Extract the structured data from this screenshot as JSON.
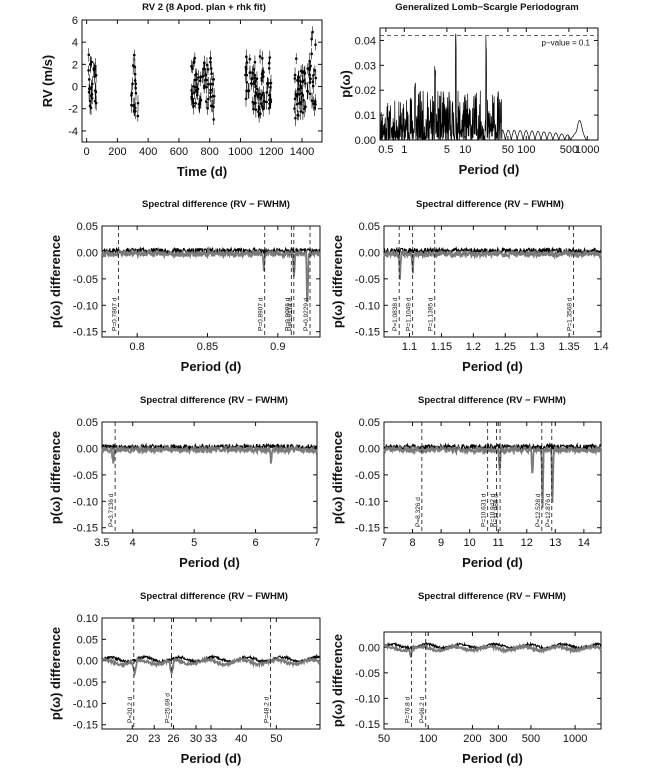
{
  "chart_data": [
    {
      "type": "scatter",
      "title": "RV 2  (8 Apod. plan + rhk fit)",
      "xlabel": "Time (d)",
      "ylabel": "RV (m/s)",
      "xlim": [
        -30,
        1530
      ],
      "ylim": [
        -5,
        6
      ],
      "xticks": [
        0,
        200,
        400,
        600,
        800,
        1000,
        1200,
        1400
      ],
      "yticks": [
        -4,
        -2,
        0,
        2,
        4,
        6
      ],
      "observing_seasons_days": [
        [
          10,
          70
        ],
        [
          290,
          335
        ],
        [
          680,
          830
        ],
        [
          1030,
          1200
        ],
        [
          1350,
          1490
        ]
      ],
      "rv_spread": 2.5,
      "error_bar": 0.6,
      "grid": false
    },
    {
      "type": "line",
      "title": "Generalized Lomb−Scargle Periodogram",
      "xlabel": "Period (d)",
      "ylabel": "p(ω)",
      "xscale": "log",
      "xlim": [
        0.4,
        1500
      ],
      "ylim": [
        0,
        0.045
      ],
      "xticks": [
        0.5,
        1,
        5,
        10,
        50,
        100,
        500,
        1000
      ],
      "xticklabels": [
        "0.5",
        "1",
        "5",
        "10",
        "50",
        "100",
        "500",
        "1000"
      ],
      "yticks": [
        0.0,
        0.01,
        0.02,
        0.03,
        0.04
      ],
      "yticklabels": [
        "0.00",
        "0.01",
        "0.02",
        "0.03",
        "0.04"
      ],
      "threshold": {
        "value": 0.042,
        "label": "p−value = 0.1"
      },
      "peaks": [
        {
          "x": 1.5,
          "y": 0.024
        },
        {
          "x": 7.0,
          "y": 0.043
        },
        {
          "x": 22.0,
          "y": 0.043
        },
        {
          "x": 3.2,
          "y": 0.03
        }
      ],
      "grid": false
    },
    {
      "type": "line",
      "title": "Spectral difference (RV − FWHM)",
      "xlabel": "Period (d)",
      "ylabel": "p(ω) difference",
      "xlim": [
        0.775,
        0.93
      ],
      "ylim": [
        -0.16,
        0.05
      ],
      "xticks": [
        0.8,
        0.85,
        0.9
      ],
      "xticklabels": [
        "0.8",
        "0.85",
        "0.9"
      ],
      "yticks": [
        0.05,
        0.0,
        -0.05,
        -0.1,
        -0.15
      ],
      "yticklabels": [
        "0.05",
        "0.00",
        "-0.05",
        "-0.10",
        "-0.15"
      ],
      "marks": [
        {
          "x": 0.7867,
          "label": "P=0.7867 d"
        },
        {
          "x": 0.8907,
          "label": "P=0.8907 d"
        },
        {
          "x": 0.9096,
          "label": "P=0.9096 d"
        },
        {
          "x": 0.9114,
          "label": "P=0.9114 d"
        },
        {
          "x": 0.9229,
          "label": "P=0.9229 d"
        }
      ],
      "dips": [
        {
          "x": 0.921,
          "depth": 0.12
        },
        {
          "x": 0.9115,
          "depth": 0.05
        },
        {
          "x": 0.89,
          "depth": 0.04
        }
      ],
      "series": [
        {
          "style": "black"
        },
        {
          "style": "gray"
        }
      ]
    },
    {
      "type": "line",
      "title": "Spectral difference (RV − FWHM)",
      "xlabel": "Period (d)",
      "ylabel": "p(ω) difference",
      "xlim": [
        1.06,
        1.4
      ],
      "ylim": [
        -0.16,
        0.05
      ],
      "xticks": [
        1.1,
        1.15,
        1.2,
        1.25,
        1.3,
        1.35,
        1.4
      ],
      "xticklabels": [
        "1.1",
        "1.15",
        "1.2",
        "1.25",
        "1.3",
        "1.35",
        "1.4"
      ],
      "yticks": [
        0.05,
        0.0,
        -0.05,
        -0.1,
        -0.15
      ],
      "yticklabels": [
        "0.05",
        "0.00",
        "-0.05",
        "-0.10",
        "-0.15"
      ],
      "marks": [
        {
          "x": 1.0838,
          "label": "P=1.0838 d"
        },
        {
          "x": 1.1049,
          "label": "P=1.1049 d"
        },
        {
          "x": 1.1395,
          "label": "P=1.1395 d"
        },
        {
          "x": 1.3568,
          "label": "P=1.3568 d"
        }
      ],
      "dips": [
        {
          "x": 1.085,
          "depth": 0.055
        },
        {
          "x": 1.105,
          "depth": 0.04
        }
      ],
      "series": [
        {
          "style": "black"
        },
        {
          "style": "gray"
        }
      ]
    },
    {
      "type": "line",
      "title": "Spectral difference (RV − FWHM)",
      "xlabel": "Period (d)",
      "ylabel": "p(ω) difference",
      "xlim": [
        3.5,
        7.0
      ],
      "ylim": [
        -0.16,
        0.05
      ],
      "xticks": [
        3.5,
        4,
        5,
        6,
        7
      ],
      "xticklabels": [
        "3.5",
        "4",
        "5",
        "6",
        "7"
      ],
      "yticks": [
        0.05,
        0.0,
        -0.05,
        -0.1,
        -0.15
      ],
      "yticklabels": [
        "0.05",
        "0.00",
        "-0.05",
        "-0.10",
        "-0.15"
      ],
      "marks": [
        {
          "x": 3.7136,
          "label": "P=3.7136 d"
        }
      ],
      "dips": [
        {
          "x": 3.68,
          "depth": 0.035
        },
        {
          "x": 6.25,
          "depth": 0.03
        }
      ],
      "series": [
        {
          "style": "black"
        },
        {
          "style": "gray"
        }
      ]
    },
    {
      "type": "line",
      "title": "Spectral difference (RV − FWHM)",
      "xlabel": "Period (d)",
      "ylabel": "p(ω) difference",
      "xlim": [
        7.0,
        14.6
      ],
      "ylim": [
        -0.16,
        0.05
      ],
      "xticks": [
        7,
        8,
        9,
        10,
        11,
        12,
        13,
        14
      ],
      "xticklabels": [
        "7",
        "8",
        "9",
        "10",
        "11",
        "12",
        "13",
        "14"
      ],
      "yticks": [
        0.05,
        0.0,
        -0.05,
        -0.1,
        -0.15
      ],
      "yticklabels": [
        "0.05",
        "0.00",
        "-0.05",
        "-0.10",
        "-0.15"
      ],
      "marks": [
        {
          "x": 8.326,
          "label": "P=8.326 d"
        },
        {
          "x": 10.631,
          "label": "P=10.631 d"
        },
        {
          "x": 10.942,
          "label": "P=10.942 d"
        },
        {
          "x": 11.065,
          "label": "P=11.065 d"
        },
        {
          "x": 12.528,
          "label": "P=12.528 d"
        },
        {
          "x": 12.876,
          "label": "P=12.876 d"
        }
      ],
      "dips": [
        {
          "x": 12.55,
          "depth": 0.13
        },
        {
          "x": 12.9,
          "depth": 0.12
        },
        {
          "x": 12.2,
          "depth": 0.07
        },
        {
          "x": 11.05,
          "depth": 0.05
        }
      ],
      "series": [
        {
          "style": "black"
        },
        {
          "style": "gray"
        }
      ]
    },
    {
      "type": "line",
      "title": "Spectral difference (RV − FWHM)",
      "xlabel": "Period (d)",
      "ylabel": "p(ω) difference",
      "xscale": "log",
      "xlim": [
        16.5,
        66
      ],
      "ylim": [
        -0.16,
        0.1
      ],
      "xticks": [
        20,
        23,
        26,
        30,
        33,
        40,
        50
      ],
      "xticklabels": [
        "20",
        "23",
        "26",
        "30",
        "33",
        "40",
        "50"
      ],
      "yticks": [
        0.1,
        0.05,
        0.0,
        -0.05,
        -0.1,
        -0.15
      ],
      "yticklabels": [
        "0.10",
        "0.05",
        "0.00",
        "-0.05",
        "-0.10",
        "-0.15"
      ],
      "marks": [
        {
          "x": 20.2,
          "label": "P=20.2 d"
        },
        {
          "x": 25.69,
          "label": "P=25.69 d"
        },
        {
          "x": 48.2,
          "label": "P=48.2 d"
        }
      ],
      "dips": [
        {
          "x": 20.3,
          "depth": 0.04
        },
        {
          "x": 25.7,
          "depth": 0.04
        }
      ],
      "series": [
        {
          "style": "black"
        },
        {
          "style": "gray"
        }
      ]
    },
    {
      "type": "line",
      "title": "Spectral difference (RV − FWHM)",
      "xlabel": "Period (d)",
      "ylabel": "p(ω) difference",
      "xscale": "log",
      "xlim": [
        50,
        1500
      ],
      "ylim": [
        -0.16,
        0.03
      ],
      "xticks": [
        50,
        100,
        200,
        300,
        500,
        1000
      ],
      "xticklabels": [
        "50",
        "100",
        "200",
        "300",
        "500",
        "1000"
      ],
      "yticks": [
        0.0,
        -0.05,
        -0.1,
        -0.15
      ],
      "yticklabels": [
        "0.00",
        "-0.05",
        "-0.10",
        "-0.15"
      ],
      "marks": [
        {
          "x": 76.8,
          "label": "P=76.8 d"
        },
        {
          "x": 96.2,
          "label": "P=96.2 d"
        }
      ],
      "dips": [
        {
          "x": 76,
          "depth": 0.025
        }
      ],
      "series": [
        {
          "style": "black"
        },
        {
          "style": "gray"
        }
      ]
    }
  ],
  "colors": {
    "black_series": "#000000",
    "gray_series": "#7a7a7a",
    "threshold_line": "#333333"
  }
}
